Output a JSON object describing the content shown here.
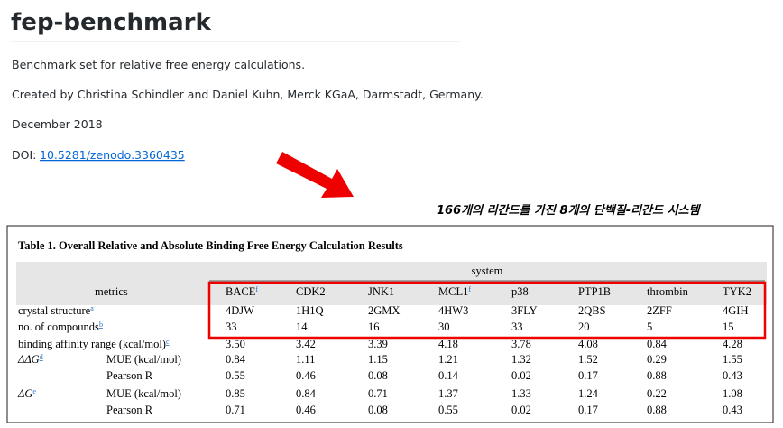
{
  "header": {
    "title": "fep-benchmark"
  },
  "paragraphs": [
    "Benchmark set for relative free energy calculations.",
    "Created by Christina Schindler and Daniel Kuhn, Merck KGaA, Darmstadt, Germany.",
    "December 2018"
  ],
  "doi": {
    "label": "DOI:",
    "link": "10.5281/zenodo.3360435"
  },
  "annotation": "166개의 리간드를 가진 8개의 단백질-리간드 시스템",
  "table": {
    "title": "Table 1. Overall Relative and Absolute Binding Free Energy Calculation Results",
    "group_header": "system",
    "metrics_header": "metrics",
    "columns": [
      {
        "label": "BACE",
        "note": "f"
      },
      {
        "label": "CDK2"
      },
      {
        "label": "JNK1"
      },
      {
        "label": "MCL1",
        "note": "f"
      },
      {
        "label": "p38"
      },
      {
        "label": "PTP1B"
      },
      {
        "label": "thrombin"
      },
      {
        "label": "TYK2"
      }
    ],
    "rows": [
      {
        "label": "crystal structure",
        "note": "a",
        "cells": [
          "4DJW",
          "1H1Q",
          "2GMX",
          "4HW3",
          "3FLY",
          "2QBS",
          "2ZFF",
          "4GIH"
        ]
      },
      {
        "label": "no. of compounds",
        "note": "b",
        "cells": [
          "33",
          "14",
          "16",
          "30",
          "33",
          "20",
          "5",
          "15"
        ]
      },
      {
        "label": "binding affinity range (kcal/mol)",
        "note": "c",
        "cells": [
          "3.50",
          "3.42",
          "3.39",
          "4.18",
          "3.78",
          "4.08",
          "0.84",
          "4.28"
        ]
      },
      {
        "label": "ΔΔG",
        "note": "d",
        "sub": "MUE (kcal/mol)",
        "cells": [
          "0.84",
          "1.11",
          "1.15",
          "1.21",
          "1.32",
          "1.52",
          "0.29",
          "1.55"
        ]
      },
      {
        "sub": "Pearson R",
        "cells": [
          "0.55",
          "0.46",
          "0.08",
          "0.14",
          "0.02",
          "0.17",
          "0.88",
          "0.43"
        ]
      },
      {
        "label": "ΔG",
        "note": "e",
        "sub": "MUE (kcal/mol)",
        "cells": [
          "0.85",
          "0.84",
          "0.71",
          "1.37",
          "1.33",
          "1.24",
          "0.22",
          "1.08"
        ]
      },
      {
        "sub": "Pearson R",
        "cells": [
          "0.71",
          "0.46",
          "0.08",
          "0.55",
          "0.02",
          "0.17",
          "0.88",
          "0.43"
        ]
      }
    ]
  }
}
